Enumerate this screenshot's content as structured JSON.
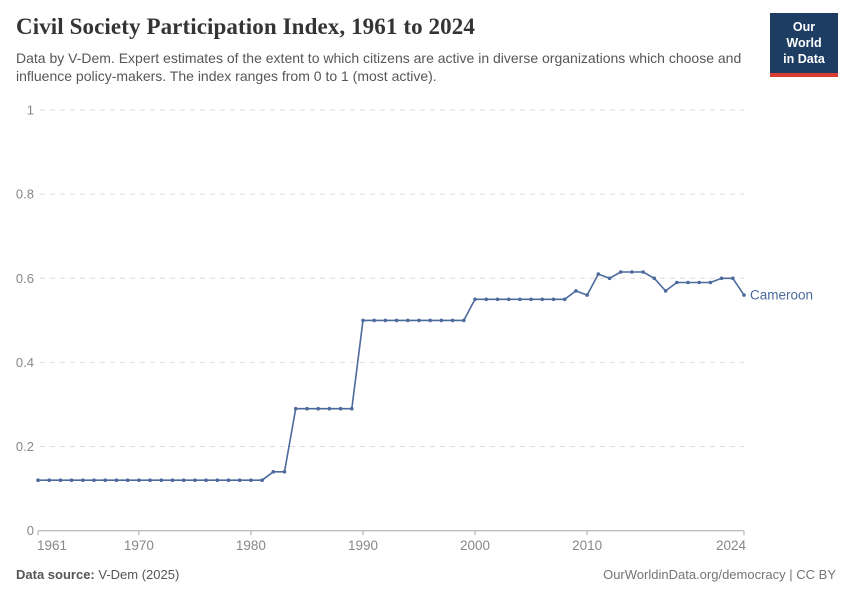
{
  "header": {
    "title": "Civil Society Participation Index, 1961 to 2024",
    "subtitle": "Data by V-Dem. Expert estimates of the extent to which citizens are active in diverse organizations which choose and influence policy-makers. The index ranges from 0 to 1 (most active).",
    "logo": {
      "line1": "Our World",
      "line2": "in Data"
    }
  },
  "chart_data": {
    "type": "line",
    "title": "Civil Society Participation Index, 1961 to 2024",
    "xlabel": "",
    "ylabel": "",
    "xlim": [
      1961,
      2024
    ],
    "ylim": [
      0,
      1
    ],
    "x_ticks": [
      1961,
      1970,
      1980,
      1990,
      2000,
      2010,
      2024
    ],
    "y_ticks": [
      0,
      0.2,
      0.4,
      0.6,
      0.8,
      1
    ],
    "grid": "horizontal-dashed",
    "legend_position": "end-of-line-label",
    "series": [
      {
        "name": "Cameroon",
        "color": "#4C6A9C",
        "x": [
          1961,
          1962,
          1963,
          1964,
          1965,
          1966,
          1967,
          1968,
          1969,
          1970,
          1971,
          1972,
          1973,
          1974,
          1975,
          1976,
          1977,
          1978,
          1979,
          1980,
          1981,
          1982,
          1983,
          1984,
          1985,
          1986,
          1987,
          1988,
          1989,
          1990,
          1991,
          1992,
          1993,
          1994,
          1995,
          1996,
          1997,
          1998,
          1999,
          2000,
          2001,
          2002,
          2003,
          2004,
          2005,
          2006,
          2007,
          2008,
          2009,
          2010,
          2011,
          2012,
          2013,
          2014,
          2015,
          2016,
          2017,
          2018,
          2019,
          2020,
          2021,
          2022,
          2023,
          2024
        ],
        "values": [
          0.12,
          0.12,
          0.12,
          0.12,
          0.12,
          0.12,
          0.12,
          0.12,
          0.12,
          0.12,
          0.12,
          0.12,
          0.12,
          0.12,
          0.12,
          0.12,
          0.12,
          0.12,
          0.12,
          0.12,
          0.12,
          0.14,
          0.14,
          0.29,
          0.29,
          0.29,
          0.29,
          0.29,
          0.29,
          0.5,
          0.5,
          0.5,
          0.5,
          0.5,
          0.5,
          0.5,
          0.5,
          0.5,
          0.5,
          0.55,
          0.55,
          0.55,
          0.55,
          0.55,
          0.55,
          0.55,
          0.55,
          0.55,
          0.57,
          0.56,
          0.61,
          0.6,
          0.615,
          0.615,
          0.615,
          0.6,
          0.57,
          0.59,
          0.59,
          0.59,
          0.59,
          0.6,
          0.6,
          0.56
        ]
      }
    ]
  },
  "footer": {
    "source_label": "Data source:",
    "source_value": " V-Dem (2025)",
    "link": "OurWorldinData.org/democracy",
    "separator": " | ",
    "license": "CC BY"
  },
  "colors": {
    "accent_line": "#4C6A9C",
    "grid": "#dedede",
    "axis": "#a8a8a8",
    "tick_text": "#888888",
    "logo_bg": "#1d3d63",
    "logo_stripe": "#d93b33"
  }
}
